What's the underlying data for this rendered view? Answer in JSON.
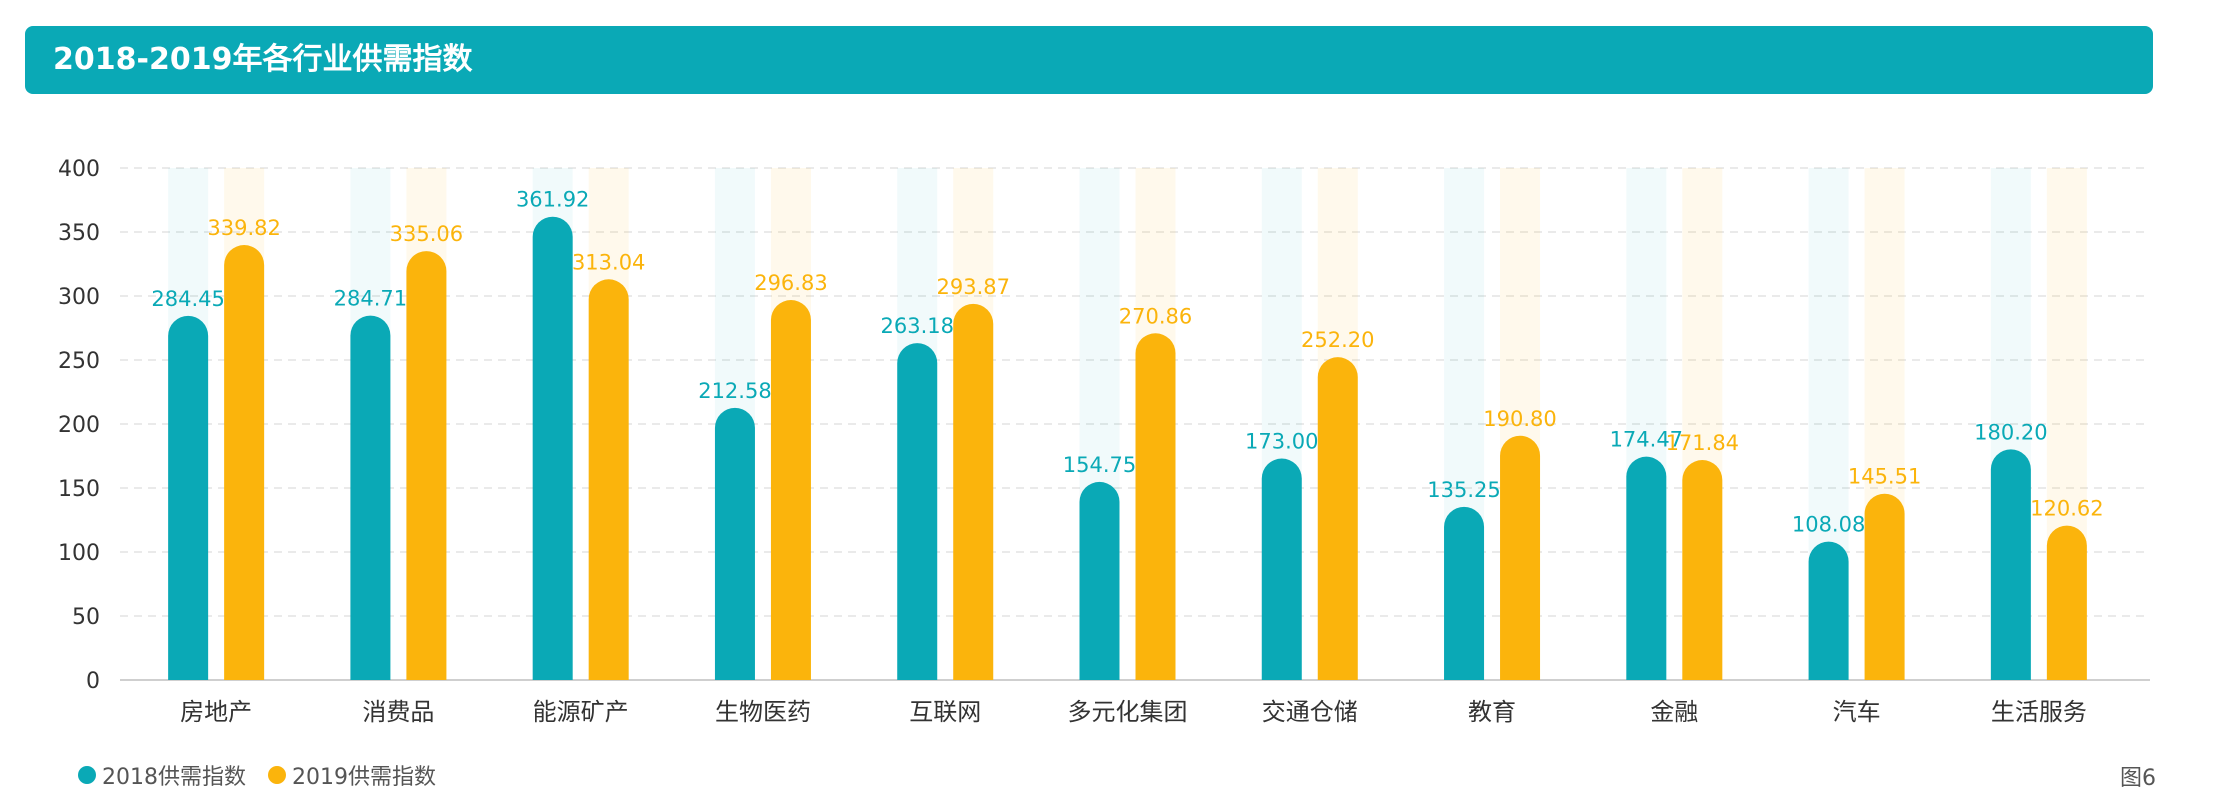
{
  "header": {
    "title": "2018-2019年各行业供需指数"
  },
  "legend": {
    "series_2018": "2018供需指数",
    "series_2019": "2019供需指数"
  },
  "figure_label": "图6",
  "colors": {
    "header": "#0aa9b6",
    "series_2018": "#0aa9b6",
    "series_2019": "#fbb40c",
    "axis_text": "#333333"
  },
  "chart_data": {
    "type": "bar",
    "title": "2018-2019年各行业供需指数",
    "categories": [
      "房地产",
      "消费品",
      "能源矿产",
      "生物医药",
      "互联网",
      "多元化集团",
      "交通仓储",
      "教育",
      "金融",
      "汽车",
      "生活服务"
    ],
    "series": [
      {
        "name": "2018供需指数",
        "values": [
          284.45,
          284.71,
          361.92,
          212.58,
          263.18,
          154.75,
          173.0,
          135.25,
          174.47,
          108.08,
          180.2
        ]
      },
      {
        "name": "2019供需指数",
        "values": [
          339.82,
          335.06,
          313.04,
          296.83,
          293.87,
          270.86,
          252.2,
          190.8,
          171.84,
          145.51,
          120.62
        ]
      }
    ],
    "data_labels": {
      "2018": [
        "284.45",
        "284.71",
        "361.92",
        "212.58",
        "263.18",
        "154.75",
        "173.00",
        "135.25",
        "174.47",
        "108.08",
        "180.20"
      ],
      "2019": [
        "339.82",
        "335.06",
        "313.04",
        "296.83",
        "293.87",
        "270.86",
        "252.20",
        "190.80",
        "171.84",
        "145.51",
        "120.62"
      ]
    },
    "yticks": [
      "0",
      "50",
      "100",
      "150",
      "200",
      "250",
      "300",
      "350",
      "400"
    ],
    "ylim": [
      0,
      400
    ],
    "grid": true,
    "legend_position": "bottom-left"
  }
}
